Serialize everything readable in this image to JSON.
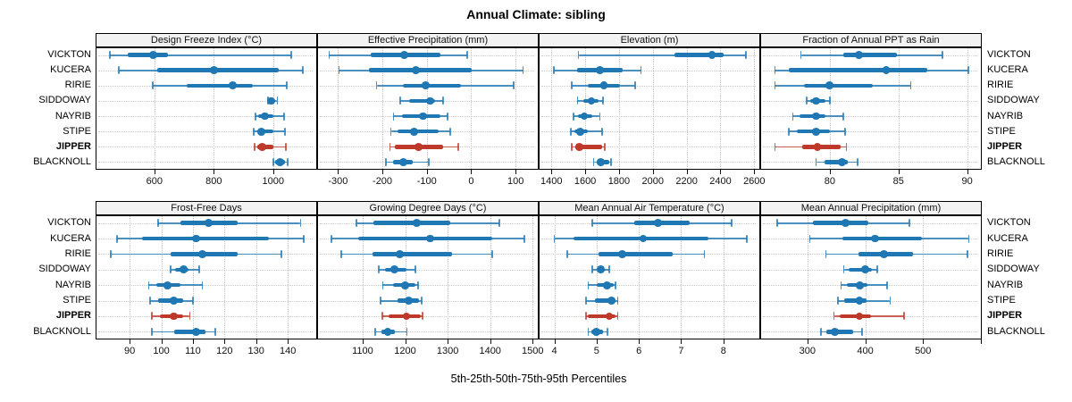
{
  "title": "Annual Climate: sibling",
  "xlabel": "5th-25th-50th-75th-95th Percentiles",
  "stations": [
    "VICKTON",
    "KUCERA",
    "RIRIE",
    "SIDDOWAY",
    "NAYRIB",
    "STIPE",
    "JIPPER",
    "BLACKNOLL"
  ],
  "highlight_station": "JIPPER",
  "colors": {
    "series": "#1f77b4",
    "highlight": "#bf392b",
    "grid": "#c6c6c6",
    "panel_header_bg": "#f2f2f2",
    "border": "#000000"
  },
  "chart_data": {
    "type": "dotplot-percentiles",
    "percentile_labels": [
      "5th",
      "25th",
      "50th",
      "75th",
      "95th"
    ],
    "legend_position": "none",
    "grid": "dotted",
    "panels": [
      {
        "title": "Design Freeze Index (°C)",
        "row": "top",
        "xmin": 405,
        "xmax": 1145,
        "ticks": [
          600,
          800,
          1000
        ],
        "tick_labels": [
          "600",
          "800",
          "1000"
        ],
        "values": [
          [
            450,
            510,
            595,
            645,
            1060
          ],
          [
            480,
            610,
            800,
            1020,
            1100
          ],
          [
            595,
            710,
            863,
            932,
            1046
          ],
          [
            983,
            987,
            993,
            1003,
            1014
          ],
          [
            940,
            950,
            972,
            1000,
            1037
          ],
          [
            935,
            947,
            960,
            1002,
            1039
          ],
          [
            937,
            947,
            962,
            1000,
            1042
          ],
          [
            1000,
            1007,
            1022,
            1041,
            1048
          ]
        ]
      },
      {
        "title": "Effective Precipitation (mm)",
        "row": "top",
        "xmin": -345,
        "xmax": 150,
        "ticks": [
          -300,
          -200,
          -100,
          0,
          100
        ],
        "tick_labels": [
          "-300",
          "-200",
          "-100",
          "0",
          "100"
        ],
        "values": [
          [
            -320,
            -226,
            -151,
            -70,
            -9
          ],
          [
            -298,
            -230,
            -125,
            2,
            117
          ],
          [
            -213,
            -153,
            -102,
            -23,
            95
          ],
          [
            -160,
            -140,
            -93,
            -82,
            -64
          ],
          [
            -175,
            -156,
            -108,
            -70,
            -54
          ],
          [
            -181,
            -165,
            -128,
            -73,
            -47
          ],
          [
            -183,
            -172,
            -118,
            -63,
            -29
          ],
          [
            -192,
            -175,
            -153,
            -131,
            -95
          ]
        ]
      },
      {
        "title": "Elevation (m)",
        "row": "top",
        "xmin": 1330,
        "xmax": 2630,
        "ticks": [
          1400,
          1600,
          1800,
          2000,
          2200,
          2400,
          2600
        ],
        "tick_labels": [
          "1400",
          "1600",
          "1800",
          "2000",
          "2200",
          "2400",
          "2600"
        ],
        "values": [
          [
            1560,
            2130,
            2350,
            2420,
            2550
          ],
          [
            1415,
            1550,
            1685,
            1820,
            1930
          ],
          [
            1520,
            1618,
            1711,
            1805,
            1897
          ],
          [
            1554,
            1588,
            1636,
            1680,
            1706
          ],
          [
            1531,
            1557,
            1594,
            1641,
            1686
          ],
          [
            1514,
            1536,
            1569,
            1618,
            1701
          ],
          [
            1520,
            1542,
            1567,
            1700,
            1714
          ],
          [
            1650,
            1667,
            1694,
            1741,
            1753
          ]
        ]
      },
      {
        "title": "Fraction of Annual PPT as Rain",
        "row": "top",
        "xmin": 75,
        "xmax": 91,
        "ticks": [
          80,
          85,
          90
        ],
        "tick_labels": [
          "80",
          "85",
          "90"
        ],
        "values": [
          [
            77.9,
            81.0,
            82.1,
            84.9,
            88.2
          ],
          [
            76.0,
            77.0,
            84.1,
            87.1,
            90.1
          ],
          [
            76.0,
            78.1,
            80.0,
            83.1,
            85.9
          ],
          [
            78.3,
            78.6,
            79.0,
            79.7,
            80.0
          ],
          [
            77.3,
            77.8,
            79.0,
            79.7,
            81.0
          ],
          [
            77.0,
            77.6,
            79.0,
            80.0,
            81.1
          ],
          [
            76.0,
            78.0,
            79.1,
            80.8,
            81.2
          ],
          [
            79.0,
            79.6,
            80.9,
            81.3,
            82.0
          ]
        ]
      },
      {
        "title": "Frost-Free Days",
        "row": "bottom",
        "xmin": 79.5,
        "xmax": 149,
        "ticks": [
          90,
          100,
          110,
          120,
          130,
          140
        ],
        "tick_labels": [
          "90",
          "100",
          "110",
          "120",
          "130",
          "140"
        ],
        "values": [
          [
            99,
            106,
            115,
            124,
            144
          ],
          [
            86,
            94,
            111,
            134,
            145
          ],
          [
            84,
            103,
            113,
            124,
            138
          ],
          [
            103,
            104.5,
            107,
            108.5,
            112
          ],
          [
            96,
            98.5,
            102,
            106,
            113
          ],
          [
            96.5,
            99,
            104,
            107,
            110
          ],
          [
            97,
            99.5,
            104,
            107,
            109
          ],
          [
            97,
            104,
            111,
            114,
            117
          ]
        ]
      },
      {
        "title": "Growing Degree Days (°C)",
        "row": "bottom",
        "xmin": 995,
        "xmax": 1512,
        "ticks": [
          1100,
          1200,
          1300,
          1400,
          1500
        ],
        "tick_labels": [
          "1100",
          "1200",
          "1300",
          "1400",
          "1500"
        ],
        "values": [
          [
            1085,
            1125,
            1227,
            1307,
            1422
          ],
          [
            1026,
            1089,
            1259,
            1405,
            1481
          ],
          [
            1050,
            1123,
            1187,
            1311,
            1405
          ],
          [
            1138,
            1153,
            1175,
            1203,
            1224
          ],
          [
            1147,
            1172,
            1200,
            1224,
            1231
          ],
          [
            1142,
            1181,
            1208,
            1233,
            1238
          ],
          [
            1146,
            1161,
            1203,
            1237,
            1241
          ],
          [
            1130,
            1144,
            1159,
            1176,
            1204
          ]
        ]
      },
      {
        "title": "Mean Annual Air Temperature (°C)",
        "row": "bottom",
        "xmin": 3.65,
        "xmax": 8.85,
        "ticks": [
          4,
          5,
          6,
          7,
          8
        ],
        "tick_labels": [
          "4",
          "5",
          "6",
          "7",
          "8"
        ],
        "values": [
          [
            4.9,
            5.9,
            6.45,
            7.2,
            8.2
          ],
          [
            4.0,
            4.45,
            6.1,
            7.65,
            8.55
          ],
          [
            4.3,
            5.05,
            5.6,
            6.8,
            7.55
          ],
          [
            4.9,
            5.0,
            5.1,
            5.2,
            5.3
          ],
          [
            4.8,
            5.0,
            5.25,
            5.4,
            5.45
          ],
          [
            4.75,
            4.95,
            5.35,
            5.45,
            5.5
          ],
          [
            4.75,
            4.8,
            5.3,
            5.45,
            5.5
          ],
          [
            4.8,
            4.87,
            5.0,
            5.15,
            5.25
          ]
        ]
      },
      {
        "title": "Mean Annual Precipitation (mm)",
        "row": "bottom",
        "xmin": 220,
        "xmax": 600,
        "ticks": [
          300,
          400,
          500,
          600
        ],
        "tick_labels": [
          "300",
          "400",
          "500",
          ""
        ],
        "values": [
          [
            248,
            310,
            366,
            406,
            476
          ],
          [
            304,
            361,
            417,
            498,
            579
          ],
          [
            332,
            389,
            433,
            482,
            577
          ],
          [
            363,
            371,
            400,
            411,
            421
          ],
          [
            358,
            369,
            391,
            404,
            438
          ],
          [
            353,
            363,
            390,
            402,
            443
          ],
          [
            346,
            356,
            390,
            410,
            467
          ],
          [
            323,
            332,
            347,
            379,
            394
          ]
        ]
      }
    ]
  }
}
